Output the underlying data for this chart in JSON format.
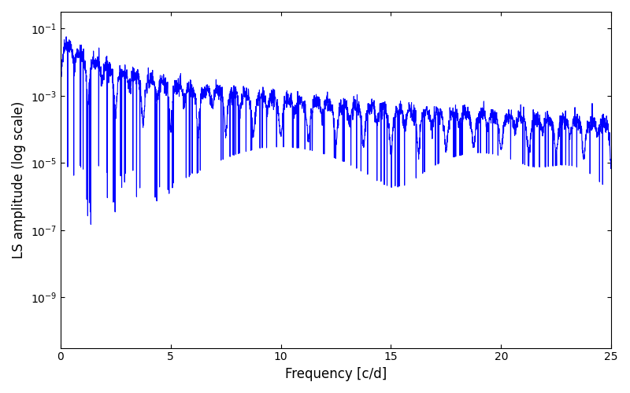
{
  "xlabel": "Frequency [c/d]",
  "ylabel": "LS amplitude (log scale)",
  "xlim": [
    0,
    25
  ],
  "ylim_log": [
    -10.5,
    -0.5
  ],
  "line_color": "#0000ff",
  "line_width": 0.8,
  "background_color": "#ffffff",
  "figsize": [
    8.0,
    5.0
  ],
  "dpi": 100,
  "yscale": "log",
  "yticks": [
    1e-09,
    1e-07,
    1e-05,
    0.001,
    0.1
  ],
  "xticks": [
    0,
    5,
    10,
    15,
    20,
    25
  ],
  "seed": 42,
  "n_points": 3000,
  "freq_max": 25.0,
  "base_amplitude": 0.08,
  "decay_exp": 1.8,
  "noise_level": 0.3,
  "oscillation_freq": 3.0
}
